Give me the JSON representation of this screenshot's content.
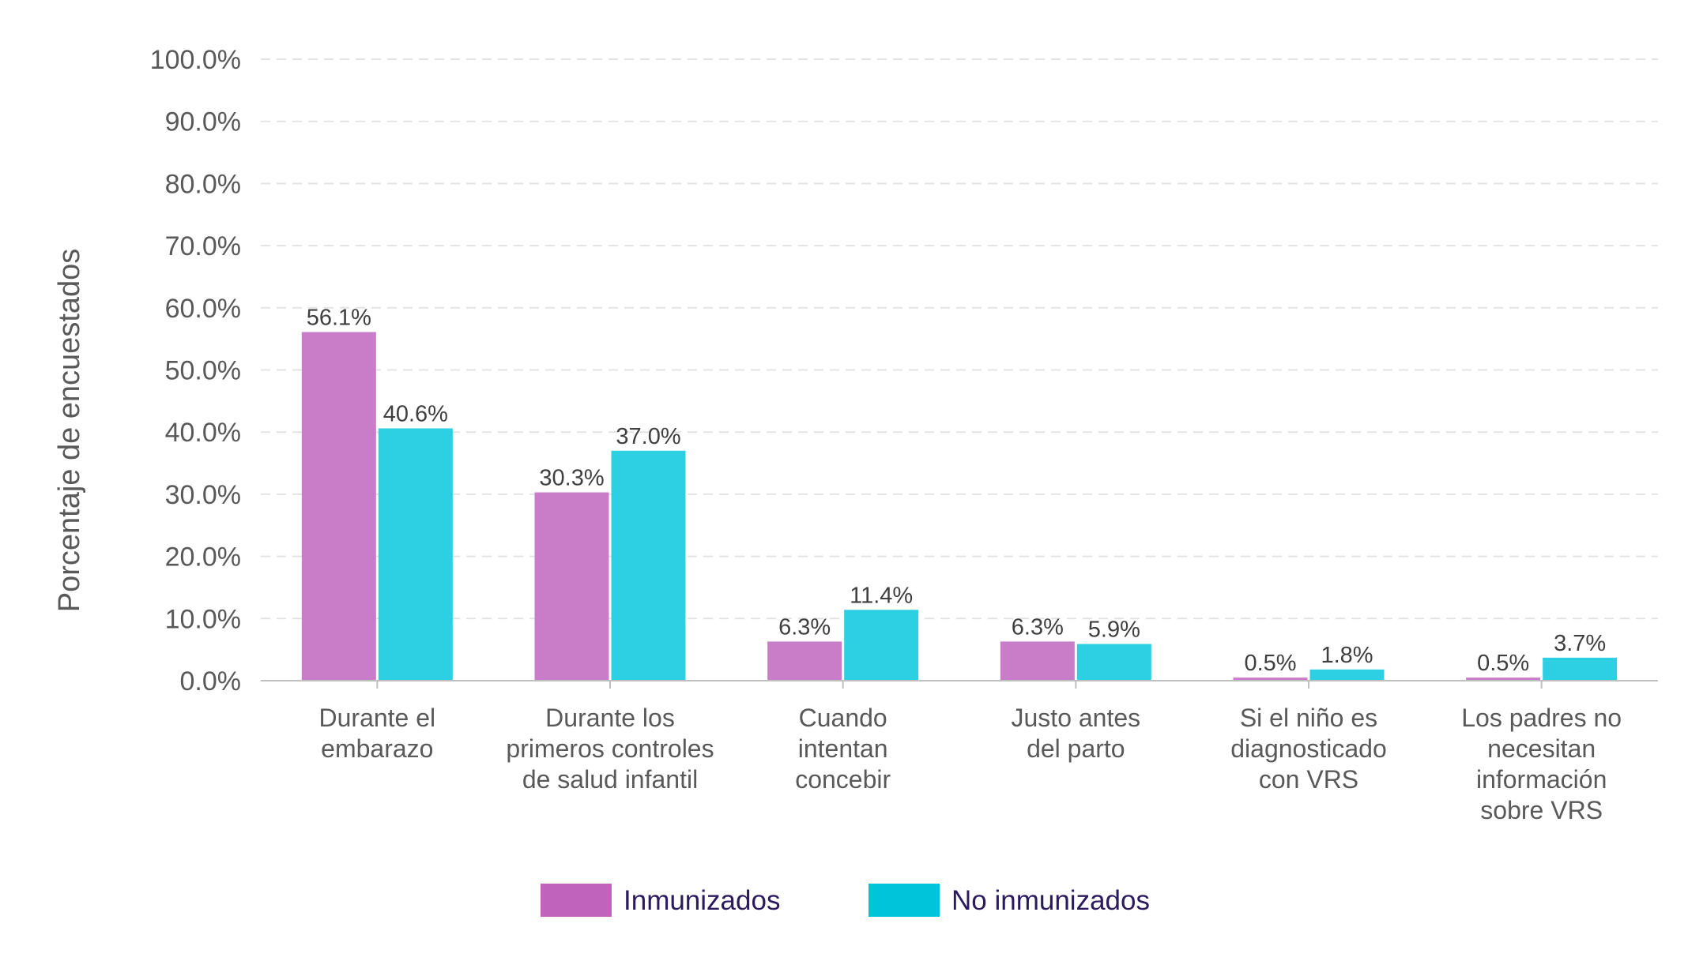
{
  "chart_data": {
    "type": "bar",
    "ylabel": "Porcentaje de encuestados",
    "xlabel": "",
    "ylim": [
      0,
      100
    ],
    "yticks": [
      "0.0%",
      "10.0%",
      "20.0%",
      "30.0%",
      "40.0%",
      "50.0%",
      "60.0%",
      "70.0%",
      "80.0%",
      "90.0%",
      "100.0%"
    ],
    "grid": true,
    "legend_position": "bottom",
    "categories": [
      [
        "Durante el",
        "embarazo"
      ],
      [
        "Durante los",
        "primeros controles",
        "de salud infantil"
      ],
      [
        "Cuando",
        "intentan",
        "concebir"
      ],
      [
        "Justo antes",
        "del parto"
      ],
      [
        "Si el niño es",
        "diagnosticado",
        "con VRS"
      ],
      [
        "Los padres no",
        "necesitan",
        "información",
        "sobre VRS"
      ]
    ],
    "series": [
      {
        "name": "Inmunizados",
        "color": "#c97cc7",
        "legend_color": "#bf63bd",
        "values": [
          56.1,
          30.3,
          6.3,
          6.3,
          0.5,
          0.5
        ],
        "labels": [
          "56.1%",
          "30.3%",
          "6.3%",
          "6.3%",
          "0.5%",
          "0.5%"
        ]
      },
      {
        "name": "No inmunizados",
        "color": "#2dcfe3",
        "legend_color": "#00c4da",
        "values": [
          40.6,
          37.0,
          11.4,
          5.9,
          1.8,
          3.7
        ],
        "labels": [
          "40.6%",
          "37.0%",
          "11.4%",
          "5.9%",
          "1.8%",
          "3.7%"
        ]
      }
    ]
  }
}
